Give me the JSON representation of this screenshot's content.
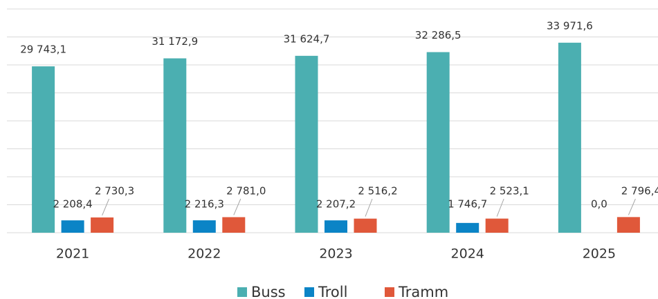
{
  "chart_data": {
    "type": "bar",
    "categories": [
      "2021",
      "2022",
      "2023",
      "2024",
      "2025"
    ],
    "series": [
      {
        "name": "Buss",
        "color": "#4bafb1",
        "values": [
          29743.1,
          31172.9,
          31624.7,
          32286.5,
          33971.6
        ],
        "value_labels": [
          "29 743,1",
          "31 172,9",
          "31 624,7",
          "32 286,5",
          "33 971,6"
        ]
      },
      {
        "name": "Troll",
        "color": "#0b84c6",
        "values": [
          2208.4,
          2216.3,
          2207.2,
          1746.7,
          0.0
        ],
        "value_labels": [
          "2 208,4",
          "2 216,3",
          "2 207,2",
          "1 746,7",
          "0,0"
        ]
      },
      {
        "name": "Tramm",
        "color": "#e0583a",
        "values": [
          2730.3,
          2781.0,
          2516.2,
          2523.1,
          2796.4
        ],
        "value_labels": [
          "2 730,3",
          "2 781,0",
          "2 516,2",
          "2 523,1",
          "2 796,4"
        ]
      }
    ],
    "ylim": [
      0,
      40000
    ],
    "yticks": [
      0,
      5000,
      10000,
      15000,
      20000,
      25000,
      30000,
      35000,
      40000
    ],
    "grid": true,
    "legend": "bottom"
  }
}
